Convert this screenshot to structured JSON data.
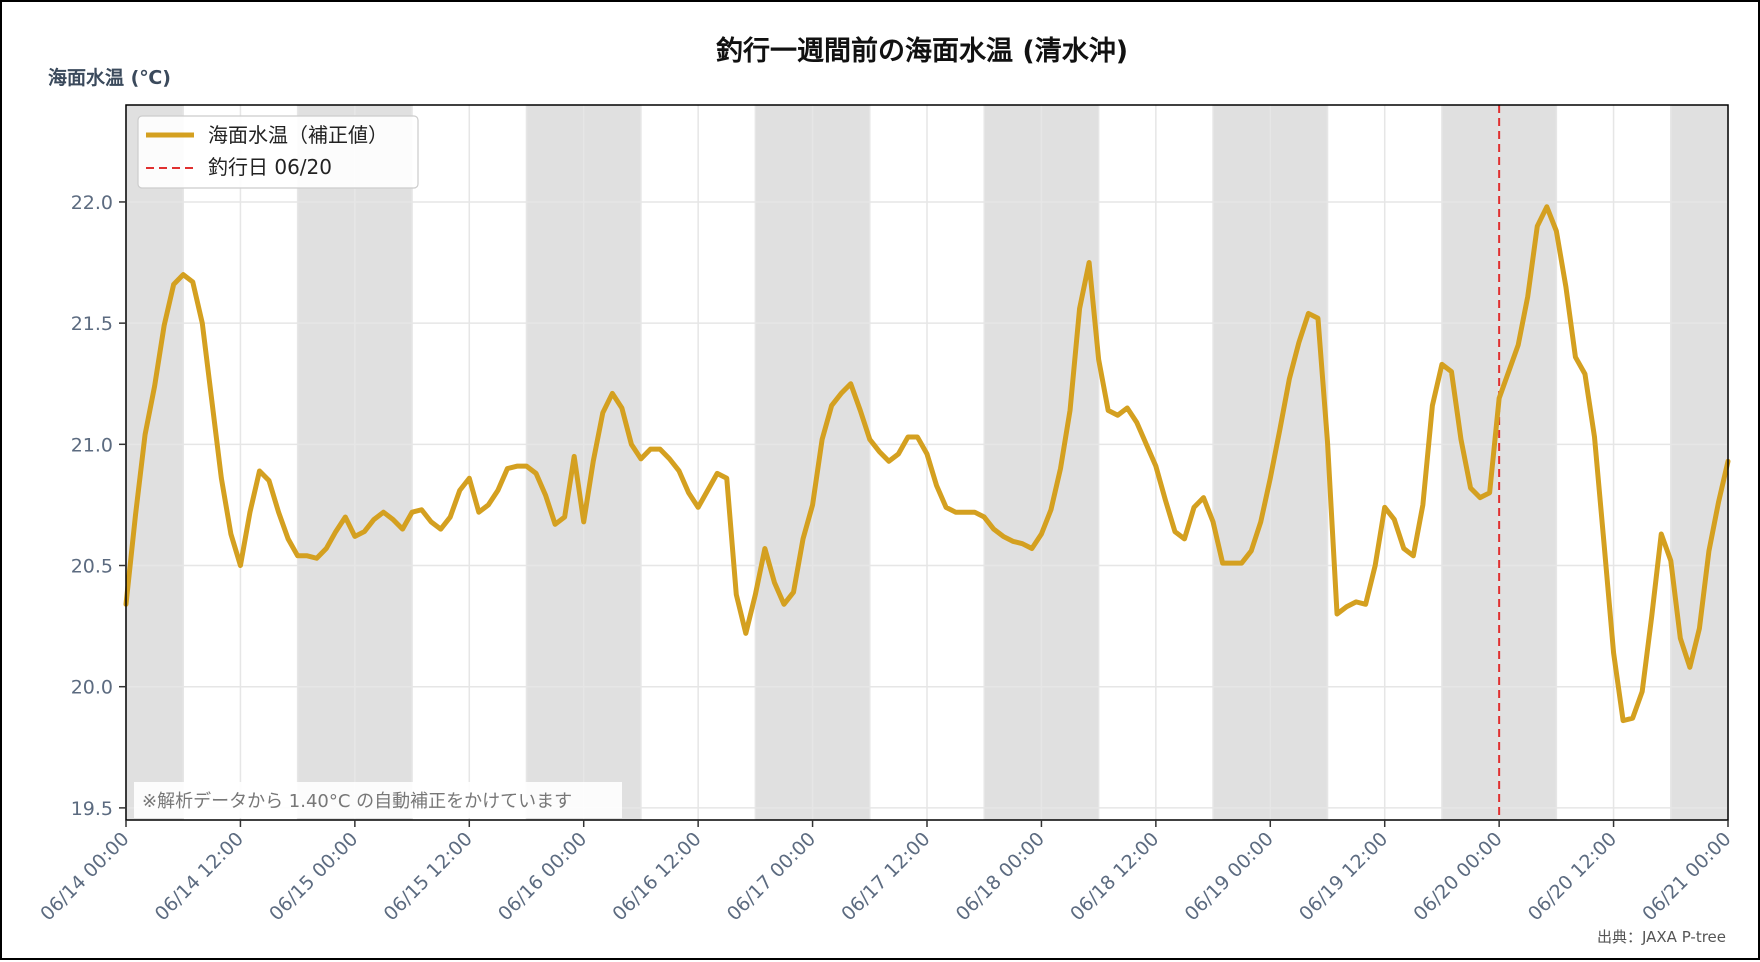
{
  "chart_data": {
    "type": "line",
    "title": "釣行一週間前の海面水温 (清水沖)",
    "ylabel": "海面水温 (℃)",
    "xlabel": "",
    "ylim": [
      19.45,
      22.4
    ],
    "xlim": [
      "06/14 00:00",
      "06/21 00:00"
    ],
    "yticks": [
      "19.5",
      "20.0",
      "20.5",
      "21.0",
      "21.5",
      "22.0"
    ],
    "xticks": [
      "06/14 00:00",
      "06/14 12:00",
      "06/15 00:00",
      "06/15 12:00",
      "06/16 00:00",
      "06/16 12:00",
      "06/17 00:00",
      "06/17 12:00",
      "06/18 00:00",
      "06/18 12:00",
      "06/19 00:00",
      "06/19 12:00",
      "06/20 00:00",
      "06/20 12:00",
      "06/21 00:00"
    ],
    "grid": true,
    "legend_position": "top-left",
    "shaded_periods": [
      [
        "06/14 00:00",
        "06/14 06:00"
      ],
      [
        "06/14 18:00",
        "06/15 06:00"
      ],
      [
        "06/15 18:00",
        "06/16 06:00"
      ],
      [
        "06/16 18:00",
        "06/17 06:00"
      ],
      [
        "06/17 18:00",
        "06/18 06:00"
      ],
      [
        "06/18 18:00",
        "06/19 06:00"
      ],
      [
        "06/19 18:00",
        "06/20 06:00"
      ],
      [
        "06/20 18:00",
        "06/21 00:00"
      ]
    ],
    "series": [
      {
        "name": "海面水温（補正値）",
        "color": "#d4a020",
        "x": [
          "06/14 00:00",
          "06/14 01:00",
          "06/14 02:00",
          "06/14 03:00",
          "06/14 04:00",
          "06/14 05:00",
          "06/14 06:00",
          "06/14 07:00",
          "06/14 08:00",
          "06/14 09:00",
          "06/14 10:00",
          "06/14 11:00",
          "06/14 12:00",
          "06/14 13:00",
          "06/14 14:00",
          "06/14 15:00",
          "06/14 16:00",
          "06/14 17:00",
          "06/14 18:00",
          "06/14 19:00",
          "06/14 20:00",
          "06/14 21:00",
          "06/14 22:00",
          "06/14 23:00",
          "06/15 00:00",
          "06/15 01:00",
          "06/15 02:00",
          "06/15 03:00",
          "06/15 04:00",
          "06/15 05:00",
          "06/15 06:00",
          "06/15 07:00",
          "06/15 08:00",
          "06/15 09:00",
          "06/15 10:00",
          "06/15 11:00",
          "06/15 12:00",
          "06/15 13:00",
          "06/15 14:00",
          "06/15 15:00",
          "06/15 16:00",
          "06/15 17:00",
          "06/15 18:00",
          "06/15 19:00",
          "06/15 20:00",
          "06/15 21:00",
          "06/15 22:00",
          "06/15 23:00",
          "06/16 00:00",
          "06/16 01:00",
          "06/16 02:00",
          "06/16 03:00",
          "06/16 04:00",
          "06/16 05:00",
          "06/16 06:00",
          "06/16 07:00",
          "06/16 08:00",
          "06/16 09:00",
          "06/16 10:00",
          "06/16 11:00",
          "06/16 12:00",
          "06/16 13:00",
          "06/16 14:00",
          "06/16 15:00",
          "06/16 16:00",
          "06/16 17:00",
          "06/16 18:00",
          "06/16 19:00",
          "06/16 20:00",
          "06/16 21:00",
          "06/16 22:00",
          "06/16 23:00",
          "06/17 00:00",
          "06/17 01:00",
          "06/17 02:00",
          "06/17 03:00",
          "06/17 04:00",
          "06/17 05:00",
          "06/17 06:00",
          "06/17 07:00",
          "06/17 08:00",
          "06/17 09:00",
          "06/17 10:00",
          "06/17 11:00",
          "06/17 12:00",
          "06/17 13:00",
          "06/17 14:00",
          "06/17 15:00",
          "06/17 16:00",
          "06/17 17:00",
          "06/17 18:00",
          "06/17 19:00",
          "06/17 20:00",
          "06/17 21:00",
          "06/17 22:00",
          "06/17 23:00",
          "06/18 00:00",
          "06/18 01:00",
          "06/18 02:00",
          "06/18 03:00",
          "06/18 04:00",
          "06/18 05:00",
          "06/18 06:00",
          "06/18 07:00",
          "06/18 08:00",
          "06/18 09:00",
          "06/18 10:00",
          "06/18 11:00",
          "06/18 12:00",
          "06/18 13:00",
          "06/18 14:00",
          "06/18 15:00",
          "06/18 16:00",
          "06/18 17:00",
          "06/18 18:00",
          "06/18 19:00",
          "06/18 20:00",
          "06/18 21:00",
          "06/18 22:00",
          "06/18 23:00",
          "06/19 00:00",
          "06/19 01:00",
          "06/19 02:00",
          "06/19 03:00",
          "06/19 04:00",
          "06/19 05:00",
          "06/19 06:00",
          "06/19 07:00",
          "06/19 08:00",
          "06/19 09:00",
          "06/19 10:00",
          "06/19 11:00",
          "06/19 12:00",
          "06/19 13:00",
          "06/19 14:00",
          "06/19 15:00",
          "06/19 16:00",
          "06/19 17:00",
          "06/19 18:00",
          "06/19 19:00",
          "06/19 20:00",
          "06/19 21:00",
          "06/19 22:00",
          "06/19 23:00",
          "06/20 00:00",
          "06/20 01:00",
          "06/20 02:00",
          "06/20 03:00",
          "06/20 04:00",
          "06/20 05:00",
          "06/20 06:00",
          "06/20 07:00",
          "06/20 08:00",
          "06/20 09:00",
          "06/20 10:00",
          "06/20 11:00",
          "06/20 12:00",
          "06/20 13:00",
          "06/20 14:00",
          "06/20 15:00",
          "06/20 16:00",
          "06/20 17:00",
          "06/20 18:00",
          "06/20 19:00",
          "06/20 20:00",
          "06/20 21:00",
          "06/20 22:00",
          "06/20 23:00",
          "06/21 00:00"
        ],
        "values": [
          20.34,
          20.71,
          21.04,
          21.24,
          21.49,
          21.66,
          21.7,
          21.67,
          21.5,
          21.18,
          20.86,
          20.63,
          20.5,
          20.72,
          20.89,
          20.85,
          20.72,
          20.61,
          20.54,
          20.54,
          20.53,
          20.57,
          20.64,
          20.7,
          20.62,
          20.64,
          20.69,
          20.72,
          20.69,
          20.65,
          20.72,
          20.73,
          20.68,
          20.65,
          20.7,
          20.81,
          20.86,
          20.72,
          20.75,
          20.81,
          20.9,
          20.91,
          20.91,
          20.88,
          20.79,
          20.67,
          20.7,
          20.95,
          20.68,
          20.93,
          21.13,
          21.21,
          21.15,
          21.0,
          20.94,
          20.98,
          20.98,
          20.94,
          20.89,
          20.8,
          20.74,
          20.81,
          20.88,
          20.86,
          20.38,
          20.22,
          20.38,
          20.57,
          20.43,
          20.34,
          20.39,
          20.61,
          20.75,
          21.02,
          21.16,
          21.21,
          21.25,
          21.14,
          21.02,
          20.97,
          20.93,
          20.96,
          21.03,
          21.03,
          20.96,
          20.83,
          20.74,
          20.72,
          20.72,
          20.72,
          20.7,
          20.65,
          20.62,
          20.6,
          20.59,
          20.57,
          20.63,
          20.73,
          20.9,
          21.14,
          21.56,
          21.75,
          21.35,
          21.14,
          21.12,
          21.15,
          21.09,
          21.0,
          20.91,
          20.77,
          20.64,
          20.61,
          20.74,
          20.78,
          20.68,
          20.51,
          20.51,
          20.51,
          20.56,
          20.68,
          20.86,
          21.06,
          21.27,
          21.42,
          21.54,
          21.52,
          21.01,
          20.3,
          20.33,
          20.35,
          20.34,
          20.5,
          20.74,
          20.69,
          20.57,
          20.54,
          20.75,
          21.16,
          21.33,
          21.3,
          21.02,
          20.82,
          20.78,
          20.8,
          21.19,
          21.3,
          21.41,
          21.61,
          21.9,
          21.98,
          21.88,
          21.65,
          21.36,
          21.29,
          21.03,
          20.59,
          20.14,
          19.86,
          19.87,
          19.98,
          20.29,
          20.63,
          20.52,
          20.2,
          20.08,
          20.24,
          20.56,
          20.76,
          20.93
        ]
      }
    ],
    "marker_line": {
      "name": "釣行日 06/20",
      "x": "06/20 00:00",
      "color": "#e03030"
    },
    "annotation": "※解析データから 1.40°C の自動補正をかけています",
    "source": "出典：JAXA P-tree"
  }
}
